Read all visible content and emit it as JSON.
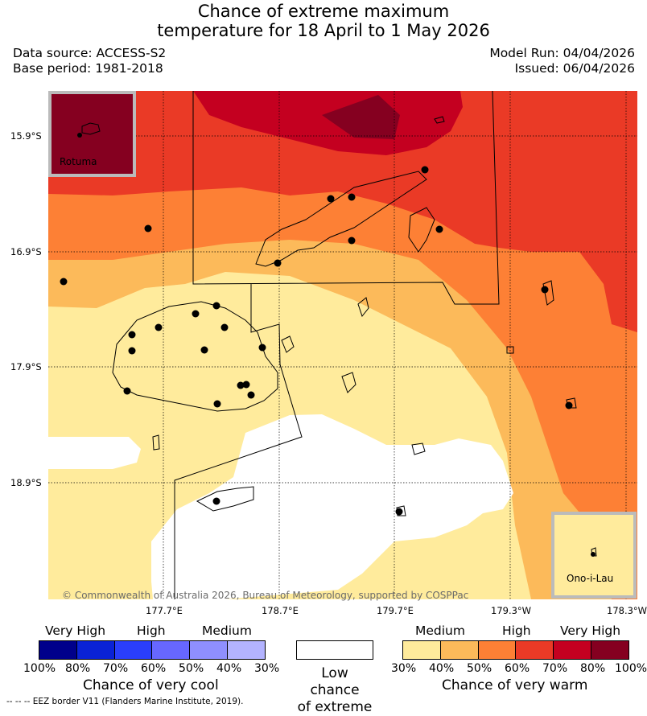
{
  "title": {
    "line1": "Chance of extreme maximum",
    "line2": "temperature for 18 April to 1 May 2026"
  },
  "meta": {
    "data_source": "Data source: ACCESS-S2",
    "base_period": "Base period: 1981-2018",
    "model_run": "Model Run: 04/04/2026",
    "issued": "Issued: 06/04/2026"
  },
  "axes": {
    "lat_labels": [
      "15.9°S",
      "16.9°S",
      "17.9°S",
      "18.9°S"
    ],
    "lon_labels": [
      "177.7°E",
      "178.7°E",
      "179.7°E",
      "179.3°W",
      "178.3°W"
    ]
  },
  "insets": {
    "rotuma": "Rotuma",
    "ono_i_lau": "Ono-i-Lau"
  },
  "copyright": "© Commonwealth of Australia 2026, Bureau of Meteorology, supported by COSPPac",
  "legend": {
    "cool": {
      "headings": [
        "Very High",
        "High",
        "Medium"
      ],
      "percents": [
        "100%",
        "80%",
        "70%",
        "60%",
        "50%",
        "40%",
        "30%"
      ],
      "colors": [
        "#00008b",
        "#0a22d6",
        "#2a3efb",
        "#6767ff",
        "#8f8fff",
        "#b3b3ff"
      ],
      "title": "Chance of very cool"
    },
    "neutral": {
      "line1": "Low chance",
      "line2": "of extreme",
      "color": "#ffffff"
    },
    "warm": {
      "headings": [
        "Medium",
        "High",
        "Very High"
      ],
      "percents": [
        "30%",
        "40%",
        "50%",
        "60%",
        "70%",
        "80%",
        "100%"
      ],
      "colors": [
        "#ffeb9c",
        "#fcba5a",
        "#fd8035",
        "#ea3a26",
        "#c40020",
        "#850020"
      ],
      "title": "Chance of very warm"
    },
    "eez_note": "--  --  -- EEZ border V11 (Flanders Marine Institute, 2019)."
  }
}
